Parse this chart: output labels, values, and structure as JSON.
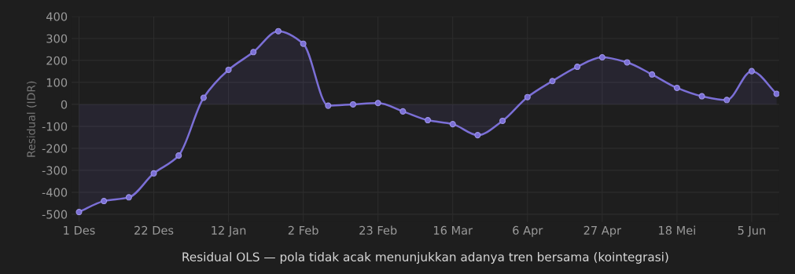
{
  "chart_data": {
    "type": "area",
    "xlabel": "Residual OLS — pola tidak acak menunjukkan adanya tren bersama (kointegrasi)",
    "ylabel": "Residual (IDR)",
    "categories": [
      "1 Des",
      null,
      null,
      "22 Des",
      null,
      null,
      "12 Jan",
      null,
      null,
      "2 Feb",
      null,
      null,
      "23 Feb",
      null,
      null,
      "16 Mar",
      null,
      null,
      "6 Apr",
      null,
      null,
      "27 Apr",
      null,
      null,
      "18 Mei",
      null,
      null,
      "5 Jun",
      null
    ],
    "series": [
      {
        "color": "#7b6fd6",
        "values": [
          -490,
          -440,
          -423,
          -314,
          -233,
          30,
          157,
          238,
          333,
          276,
          -6,
          0,
          6,
          -32,
          -72,
          -90,
          -140,
          -75,
          33,
          106,
          171,
          214,
          191,
          136,
          75,
          37,
          20,
          151,
          48
        ]
      }
    ],
    "ylim": [
      -535,
      400
    ],
    "yticks": [
      -500,
      -400,
      -300,
      -200,
      -100,
      0,
      100,
      200,
      300,
      400
    ],
    "grid": true,
    "marker": "circle",
    "line_style": "solid"
  }
}
